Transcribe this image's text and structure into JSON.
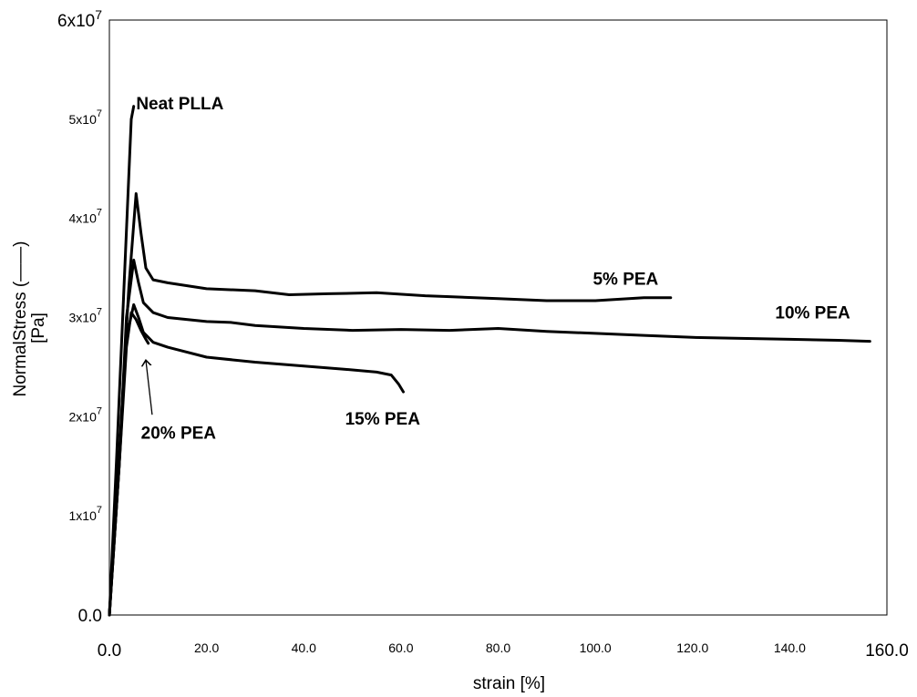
{
  "chart_data": {
    "type": "line",
    "title": "",
    "xlabel": "strain [%]",
    "ylabel_line1": "NormalStress (——)",
    "ylabel_line2": "[Pa]",
    "xlim": [
      0,
      160
    ],
    "ylim": [
      0,
      60000000
    ],
    "grid": false,
    "x_ticks": [
      {
        "value": 0,
        "label": "0.0",
        "size": "major"
      },
      {
        "value": 20,
        "label": "20.0",
        "size": "minor"
      },
      {
        "value": 40,
        "label": "40.0",
        "size": "minor"
      },
      {
        "value": 60,
        "label": "60.0",
        "size": "minor"
      },
      {
        "value": 80,
        "label": "80.0",
        "size": "minor"
      },
      {
        "value": 100,
        "label": "100.0",
        "size": "minor"
      },
      {
        "value": 120,
        "label": "120.0",
        "size": "minor"
      },
      {
        "value": 140,
        "label": "140.0",
        "size": "minor"
      },
      {
        "value": 160,
        "label": "160.0",
        "size": "major"
      }
    ],
    "y_ticks": [
      {
        "value": 0,
        "base": "0.0",
        "exp": "",
        "size": "major"
      },
      {
        "value": 10000000,
        "base": "1x10",
        "exp": "7",
        "size": "minor"
      },
      {
        "value": 20000000,
        "base": "2x10",
        "exp": "7",
        "size": "minor"
      },
      {
        "value": 30000000,
        "base": "3x10",
        "exp": "7",
        "size": "minor"
      },
      {
        "value": 40000000,
        "base": "4x10",
        "exp": "7",
        "size": "minor"
      },
      {
        "value": 50000000,
        "base": "5x10",
        "exp": "7",
        "size": "minor"
      },
      {
        "value": 60000000,
        "base": "6x10",
        "exp": "7",
        "size": "major"
      }
    ],
    "series": [
      {
        "name": "Neat PLLA",
        "x": [
          0,
          1.5,
          3,
          4.5,
          5.0
        ],
        "y": [
          0,
          16000000,
          33000000,
          50000000,
          51300000
        ]
      },
      {
        "name": "5% PEA",
        "x": [
          0,
          2,
          4,
          5.5,
          6.5,
          7.5,
          9,
          12,
          20,
          30,
          37,
          45,
          55,
          65,
          70,
          80,
          90,
          100,
          110,
          115.5
        ],
        "y": [
          0,
          16000000,
          33000000,
          42500000,
          38500000,
          35000000,
          33800000,
          33500000,
          32900000,
          32700000,
          32300000,
          32400000,
          32500000,
          32200000,
          32100000,
          31900000,
          31700000,
          31700000,
          32000000,
          32000000
        ]
      },
      {
        "name": "10% PEA",
        "x": [
          0,
          2,
          3.5,
          5,
          6,
          7,
          9,
          12,
          20,
          25,
          30,
          40,
          50,
          60,
          70,
          80,
          90,
          100,
          110,
          120,
          130,
          140,
          150,
          156.5
        ],
        "y": [
          0,
          15000000,
          30000000,
          35800000,
          33500000,
          31500000,
          30500000,
          30000000,
          29600000,
          29500000,
          29200000,
          28900000,
          28700000,
          28800000,
          28700000,
          28900000,
          28600000,
          28400000,
          28200000,
          28000000,
          27900000,
          27800000,
          27700000,
          27600000
        ]
      },
      {
        "name": "15% PEA",
        "x": [
          0,
          2,
          3.5,
          5,
          6,
          7,
          9,
          12,
          20,
          30,
          40,
          48,
          55,
          58,
          59.5,
          60.5
        ],
        "y": [
          0,
          15000000,
          28000000,
          31300000,
          30000000,
          28500000,
          27500000,
          27000000,
          26000000,
          25500000,
          25100000,
          24800000,
          24500000,
          24200000,
          23300000,
          22500000
        ]
      },
      {
        "name": "20% PEA",
        "x": [
          0,
          2,
          3.5,
          4.5,
          5.5,
          6.5,
          7.5,
          8.0
        ],
        "y": [
          0,
          15000000,
          27000000,
          30500000,
          29800000,
          28700000,
          27800000,
          27400000
        ]
      }
    ],
    "annotations": [
      {
        "text": "Neat PLLA",
        "series": 0,
        "anchor_x": 5.5,
        "anchor_y": 51000000
      },
      {
        "text": "5% PEA",
        "series": 1,
        "anchor_x": 99.5,
        "anchor_y": 33300000
      },
      {
        "text": "10% PEA",
        "series": 2,
        "anchor_x": 137,
        "anchor_y": 29900000
      },
      {
        "text": "15% PEA",
        "series": 3,
        "anchor_x": 48.5,
        "anchor_y": 19200000
      },
      {
        "text": "20% PEA",
        "series": 4,
        "anchor_x": 6.5,
        "anchor_y": 17800000,
        "arrow_from_x": 8.8,
        "arrow_from_y": 20200000,
        "arrow_to_x": 7.5,
        "arrow_to_y": 25700000
      }
    ]
  }
}
